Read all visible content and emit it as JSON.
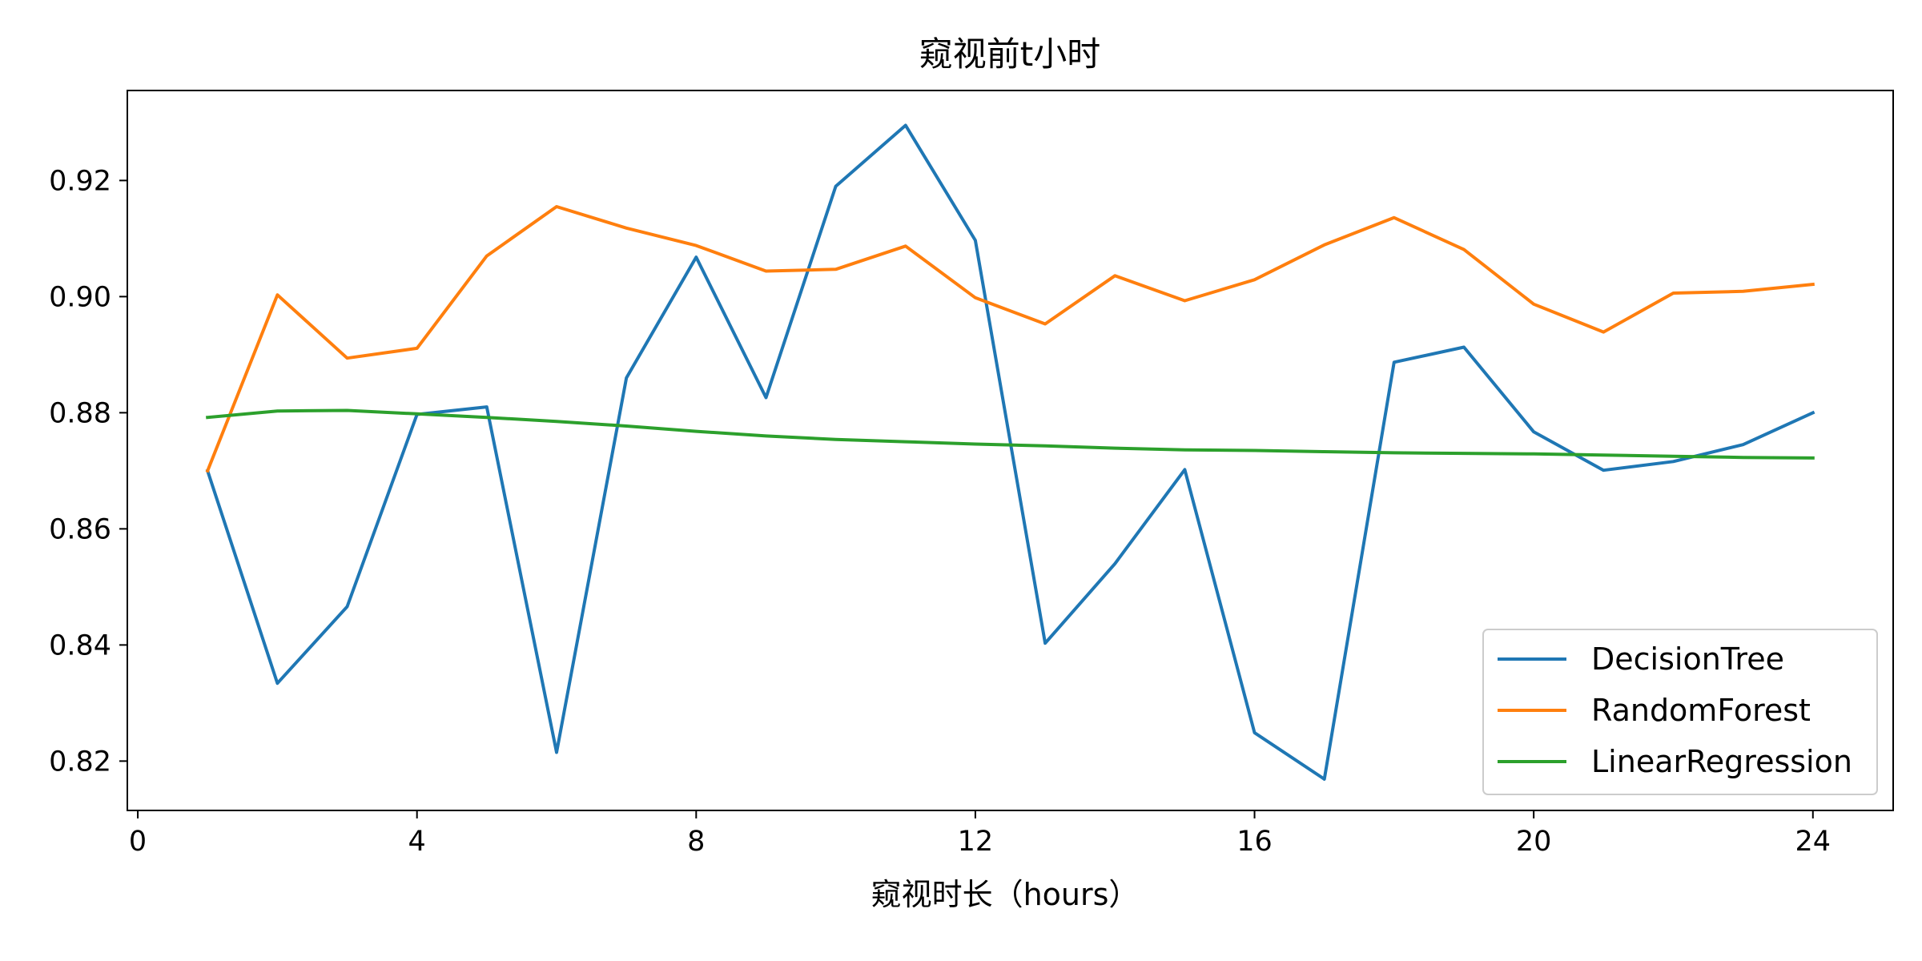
{
  "chart_data": {
    "type": "line",
    "title": "窥视前t小时",
    "xlabel": "窥视时长（hours）",
    "ylabel": "",
    "xlim": [
      -0.15,
      25.15
    ],
    "ylim": [
      0.8115,
      0.9355
    ],
    "xticks": [
      0,
      4,
      8,
      12,
      16,
      20,
      24
    ],
    "xtick_labels": [
      "0",
      "4",
      "8",
      "12",
      "16",
      "20",
      "24"
    ],
    "yticks": [
      0.82,
      0.84,
      0.86,
      0.88,
      0.9,
      0.92
    ],
    "ytick_labels": [
      "0.82",
      "0.84",
      "0.86",
      "0.88",
      "0.90",
      "0.92"
    ],
    "grid": false,
    "legend_position": "lower-right",
    "x": [
      1,
      2,
      3,
      4,
      5,
      6,
      7,
      8,
      9,
      10,
      11,
      12,
      13,
      14,
      15,
      16,
      17,
      18,
      19,
      20,
      21,
      22,
      23,
      24
    ],
    "series": [
      {
        "name": "DecisionTree",
        "color": "#1f77b4",
        "values": [
          0.87,
          0.8334,
          0.8466,
          0.8797,
          0.881,
          0.8215,
          0.886,
          0.9068,
          0.8826,
          0.919,
          0.9295,
          0.9097,
          0.8403,
          0.854,
          0.8702,
          0.8249,
          0.8169,
          0.8887,
          0.8913,
          0.8767,
          0.8701,
          0.8716,
          0.8745,
          0.88
        ]
      },
      {
        "name": "RandomForest",
        "color": "#ff7f0e",
        "values": [
          0.87,
          0.9003,
          0.8894,
          0.8911,
          0.907,
          0.9155,
          0.9118,
          0.9088,
          0.9044,
          0.9047,
          0.9087,
          0.8998,
          0.8953,
          0.9036,
          0.8993,
          0.9029,
          0.9089,
          0.9136,
          0.9081,
          0.8987,
          0.8939,
          0.9006,
          0.9009,
          0.9021
        ]
      },
      {
        "name": "LinearRegression",
        "color": "#2ca02c",
        "values": [
          0.8792,
          0.8803,
          0.8804,
          0.8798,
          0.8792,
          0.8785,
          0.8777,
          0.8768,
          0.876,
          0.8754,
          0.875,
          0.8746,
          0.8743,
          0.8739,
          0.8736,
          0.8735,
          0.8733,
          0.8731,
          0.873,
          0.8729,
          0.8727,
          0.8725,
          0.8723,
          0.8722
        ]
      }
    ]
  }
}
